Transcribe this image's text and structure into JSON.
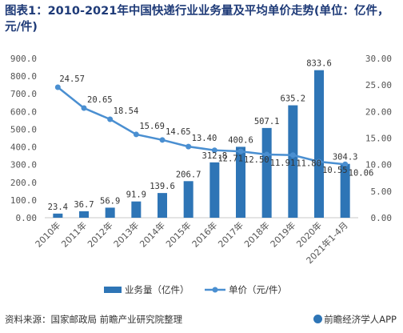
{
  "title": "图表1：2010-2021年中国快递行业业务量及平均单价走势(单位：亿件，元/件)",
  "source": "资料来源：国家邮政局 前瞻产业研究院整理",
  "brand": "前瞻经济学人APP",
  "colors": {
    "bar": "#2e75b6",
    "line": "#4a8fd1"
  },
  "chart_data": {
    "type": "bar",
    "categories": [
      "2010年",
      "2011年",
      "2012年",
      "2013年",
      "2014年",
      "2015年",
      "2016年",
      "2017年",
      "2018年",
      "2019年",
      "2020年",
      "2021年1-4月"
    ],
    "series": [
      {
        "name": "业务量（亿件）",
        "type": "bar",
        "axis": "left",
        "values": [
          23.4,
          36.7,
          56.9,
          91.9,
          139.6,
          206.7,
          312.8,
          400.6,
          507.1,
          635.2,
          833.6,
          304.3
        ]
      },
      {
        "name": "单价（元/件）",
        "type": "line",
        "axis": "right",
        "values": [
          24.57,
          20.65,
          18.54,
          15.69,
          14.65,
          13.4,
          12.71,
          12.5,
          11.91,
          11.8,
          10.55,
          10.06
        ]
      }
    ],
    "y_left": {
      "min": 0,
      "max": 900,
      "step": 100,
      "tick_labels": [
        "0.00",
        "100.0",
        "200.0",
        "300.0",
        "400.0",
        "500.0",
        "600.0",
        "700.0",
        "800.0",
        "900.0"
      ]
    },
    "y_right": {
      "min": 0,
      "max": 30,
      "step": 5,
      "tick_labels": [
        "0.00",
        "5.00",
        "10.00",
        "15.00",
        "20.00",
        "25.00",
        "30.00"
      ]
    },
    "bar_labels": [
      "23.4",
      "36.7",
      "56.9",
      "91.9",
      "139.6",
      "206.7",
      "312.8",
      "400.6",
      "507.1",
      "635.2",
      "833.6",
      "304.3"
    ],
    "line_labels": [
      "24.57",
      "20.65",
      "18.54",
      "15.69",
      "14.65",
      "13.40",
      "12.71",
      "12.50",
      "11.91",
      "11.80",
      "10.55",
      "10.06"
    ],
    "legend": {
      "position": "bottom",
      "items": [
        "业务量（亿件）",
        "单价（元/件）"
      ]
    },
    "grid": false
  }
}
